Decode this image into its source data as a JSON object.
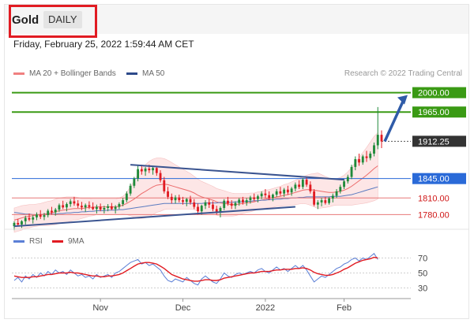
{
  "header": {
    "instrument": "Gold",
    "timeframe": "DAILY",
    "datetime": "Friday, February 25, 2022 1:59:44 AM CET"
  },
  "price_legend": {
    "bollinger": {
      "label": "MA 20 + Bollinger Bands",
      "color": "#f08080"
    },
    "ma50": {
      "label": "MA 50",
      "color": "#2d4a8a"
    }
  },
  "copyright": "Research © 2022 Trading Central",
  "rsi_legend": {
    "rsi": {
      "label": "RSI",
      "color": "#5b7fd6"
    },
    "ma9": {
      "label": "9MA",
      "color": "#e11b22"
    }
  },
  "colors": {
    "up": "#1f8a3a",
    "down": "#e11b22",
    "resistance": "#3a9a14",
    "support": "#e87878",
    "pivot": "#2a6ad8",
    "current": "#333333",
    "trendline": "#3a5490",
    "band_fill": "#fde2e2"
  },
  "chart_data": [
    {
      "type": "candlestick",
      "title": "Gold",
      "timeframe": "DAILY",
      "x_labels": [
        "Nov",
        "Dec",
        "2022",
        "Feb"
      ],
      "ylim": [
        1755,
        2025
      ],
      "levels": [
        {
          "value": 2000.0,
          "label": "2000.00",
          "kind": "resistance"
        },
        {
          "value": 1965.0,
          "label": "1965.00",
          "kind": "resistance"
        },
        {
          "value": 1912.25,
          "label": "1912.25",
          "kind": "current"
        },
        {
          "value": 1845.0,
          "label": "1845.00",
          "kind": "pivot"
        },
        {
          "value": 1810.0,
          "label": "1810.00",
          "kind": "support"
        },
        {
          "value": 1780.0,
          "label": "1780.00",
          "kind": "support"
        }
      ],
      "candles": [
        [
          1759,
          1768,
          1752,
          1765
        ],
        [
          1765,
          1772,
          1760,
          1762
        ],
        [
          1762,
          1770,
          1756,
          1768
        ],
        [
          1768,
          1778,
          1762,
          1774
        ],
        [
          1774,
          1782,
          1768,
          1771
        ],
        [
          1771,
          1779,
          1764,
          1775
        ],
        [
          1775,
          1784,
          1770,
          1780
        ],
        [
          1780,
          1788,
          1772,
          1776
        ],
        [
          1776,
          1783,
          1770,
          1779
        ],
        [
          1779,
          1790,
          1775,
          1787
        ],
        [
          1787,
          1794,
          1780,
          1784
        ],
        [
          1784,
          1792,
          1778,
          1789
        ],
        [
          1789,
          1800,
          1785,
          1797
        ],
        [
          1797,
          1805,
          1790,
          1793
        ],
        [
          1793,
          1802,
          1786,
          1799
        ],
        [
          1799,
          1808,
          1794,
          1804
        ],
        [
          1804,
          1812,
          1796,
          1800
        ],
        [
          1800,
          1806,
          1792,
          1796
        ],
        [
          1796,
          1803,
          1788,
          1793
        ],
        [
          1793,
          1800,
          1785,
          1797
        ],
        [
          1797,
          1804,
          1790,
          1794
        ],
        [
          1794,
          1802,
          1788,
          1790
        ],
        [
          1790,
          1798,
          1782,
          1794
        ],
        [
          1794,
          1800,
          1786,
          1789
        ],
        [
          1789,
          1796,
          1782,
          1792
        ],
        [
          1792,
          1799,
          1786,
          1795
        ],
        [
          1795,
          1801,
          1788,
          1790
        ],
        [
          1790,
          1797,
          1782,
          1794
        ],
        [
          1794,
          1802,
          1790,
          1799
        ],
        [
          1799,
          1810,
          1795,
          1806
        ],
        [
          1806,
          1822,
          1802,
          1818
        ],
        [
          1818,
          1836,
          1814,
          1832
        ],
        [
          1832,
          1848,
          1828,
          1845
        ],
        [
          1845,
          1868,
          1840,
          1862
        ],
        [
          1862,
          1870,
          1852,
          1858
        ],
        [
          1858,
          1866,
          1850,
          1863
        ],
        [
          1863,
          1870,
          1855,
          1860
        ],
        [
          1860,
          1868,
          1852,
          1864
        ],
        [
          1864,
          1868,
          1850,
          1855
        ],
        [
          1855,
          1860,
          1838,
          1842
        ],
        [
          1842,
          1848,
          1818,
          1822
        ],
        [
          1822,
          1830,
          1808,
          1812
        ],
        [
          1812,
          1818,
          1800,
          1806
        ],
        [
          1806,
          1815,
          1800,
          1811
        ],
        [
          1811,
          1816,
          1802,
          1806
        ],
        [
          1806,
          1812,
          1798,
          1803
        ],
        [
          1803,
          1810,
          1795,
          1808
        ],
        [
          1808,
          1814,
          1798,
          1802
        ],
        [
          1802,
          1808,
          1790,
          1794
        ],
        [
          1794,
          1800,
          1780,
          1786
        ],
        [
          1786,
          1798,
          1780,
          1796
        ],
        [
          1796,
          1806,
          1790,
          1802
        ],
        [
          1802,
          1808,
          1792,
          1798
        ],
        [
          1798,
          1804,
          1786,
          1790
        ],
        [
          1790,
          1796,
          1780,
          1784
        ],
        [
          1784,
          1795,
          1775,
          1792
        ],
        [
          1792,
          1808,
          1788,
          1805
        ],
        [
          1805,
          1812,
          1796,
          1800
        ],
        [
          1800,
          1806,
          1790,
          1796
        ],
        [
          1796,
          1804,
          1790,
          1801
        ],
        [
          1801,
          1810,
          1796,
          1807
        ],
        [
          1807,
          1812,
          1798,
          1802
        ],
        [
          1802,
          1810,
          1796,
          1806
        ],
        [
          1806,
          1814,
          1800,
          1811
        ],
        [
          1811,
          1818,
          1804,
          1808
        ],
        [
          1808,
          1816,
          1802,
          1813
        ],
        [
          1813,
          1822,
          1808,
          1818
        ],
        [
          1818,
          1826,
          1810,
          1815
        ],
        [
          1815,
          1822,
          1806,
          1810
        ],
        [
          1810,
          1818,
          1804,
          1816
        ],
        [
          1816,
          1826,
          1812,
          1822
        ],
        [
          1822,
          1830,
          1814,
          1818
        ],
        [
          1818,
          1828,
          1812,
          1825
        ],
        [
          1825,
          1832,
          1816,
          1820
        ],
        [
          1820,
          1830,
          1814,
          1827
        ],
        [
          1827,
          1838,
          1822,
          1834
        ],
        [
          1834,
          1842,
          1826,
          1830
        ],
        [
          1830,
          1846,
          1826,
          1843
        ],
        [
          1843,
          1848,
          1830,
          1834
        ],
        [
          1834,
          1840,
          1818,
          1822
        ],
        [
          1822,
          1826,
          1795,
          1798
        ],
        [
          1798,
          1806,
          1790,
          1802
        ],
        [
          1802,
          1810,
          1795,
          1806
        ],
        [
          1806,
          1812,
          1798,
          1801
        ],
        [
          1801,
          1812,
          1798,
          1809
        ],
        [
          1809,
          1818,
          1802,
          1814
        ],
        [
          1814,
          1826,
          1810,
          1822
        ],
        [
          1822,
          1834,
          1818,
          1830
        ],
        [
          1830,
          1844,
          1826,
          1840
        ],
        [
          1840,
          1852,
          1836,
          1848
        ],
        [
          1848,
          1870,
          1844,
          1866
        ],
        [
          1866,
          1885,
          1860,
          1880
        ],
        [
          1880,
          1890,
          1868,
          1874
        ],
        [
          1874,
          1888,
          1870,
          1885
        ],
        [
          1885,
          1895,
          1875,
          1882
        ],
        [
          1882,
          1894,
          1878,
          1890
        ],
        [
          1890,
          1910,
          1885,
          1905
        ],
        [
          1905,
          1974,
          1898,
          1924
        ],
        [
          1924,
          1932,
          1900,
          1912
        ]
      ],
      "ma20": [
        1770,
        1772,
        1774,
        1776,
        1777,
        1778,
        1779,
        1780,
        1781,
        1782,
        1783,
        1785,
        1787,
        1788,
        1789,
        1790,
        1791,
        1791,
        1791,
        1792,
        1793,
        1793,
        1794,
        1794,
        1794,
        1794,
        1794,
        1794,
        1795,
        1797,
        1800,
        1804,
        1808,
        1813,
        1818,
        1822,
        1826,
        1830,
        1833,
        1834,
        1835,
        1834,
        1832,
        1830,
        1828,
        1826,
        1824,
        1822,
        1819,
        1815,
        1812,
        1810,
        1808,
        1806,
        1803,
        1801,
        1800,
        1799,
        1798,
        1798,
        1799,
        1800,
        1801,
        1802,
        1803,
        1805,
        1806,
        1808,
        1809,
        1810,
        1812,
        1813,
        1815,
        1816,
        1818,
        1820,
        1822,
        1824,
        1825,
        1825,
        1824,
        1823,
        1822,
        1821,
        1820,
        1820,
        1821,
        1822,
        1824,
        1827,
        1831,
        1836,
        1841,
        1846,
        1851,
        1857,
        1863,
        1868
      ],
      "ma50": [
        1784,
        1783,
        1782,
        1781,
        1781,
        1780,
        1780,
        1780,
        1780,
        1780,
        1781,
        1781,
        1782,
        1782,
        1783,
        1783,
        1784,
        1784,
        1785,
        1785,
        1786,
        1786,
        1787,
        1787,
        1787,
        1788,
        1788,
        1788,
        1789,
        1789,
        1790,
        1791,
        1792,
        1793,
        1794,
        1795,
        1796,
        1797,
        1798,
        1799,
        1800,
        1800,
        1800,
        1800,
        1800,
        1800,
        1800,
        1800,
        1800,
        1800,
        1800,
        1801,
        1801,
        1801,
        1801,
        1802,
        1802,
        1802,
        1802,
        1803,
        1803,
        1803,
        1804,
        1804,
        1805,
        1805,
        1806,
        1806,
        1807,
        1807,
        1808,
        1808,
        1809,
        1809,
        1810,
        1810,
        1811,
        1811,
        1812,
        1812,
        1812,
        1812,
        1812,
        1812,
        1812,
        1813,
        1813,
        1813,
        1814,
        1815,
        1816,
        1818,
        1820,
        1822,
        1824,
        1826,
        1828,
        1830
      ],
      "bb_width": [
        22,
        22,
        22,
        21,
        21,
        20,
        20,
        20,
        21,
        22,
        22,
        23,
        23,
        23,
        23,
        22,
        21,
        20,
        18,
        17,
        16,
        15,
        14,
        14,
        14,
        14,
        14,
        14,
        15,
        16,
        20,
        26,
        33,
        40,
        45,
        48,
        50,
        50,
        49,
        48,
        46,
        44,
        42,
        40,
        38,
        36,
        34,
        32,
        30,
        29,
        28,
        27,
        26,
        25,
        24,
        24,
        23,
        22,
        21,
        20,
        19,
        18,
        17,
        17,
        16,
        16,
        16,
        16,
        16,
        17,
        17,
        18,
        19,
        20,
        21,
        22,
        23,
        24,
        26,
        28,
        30,
        32,
        30,
        28,
        26,
        24,
        24,
        25,
        27,
        30,
        34,
        38,
        42,
        46,
        50,
        54,
        58,
        60
      ]
    },
    {
      "type": "line",
      "title": "RSI",
      "series": [
        {
          "name": "RSI",
          "values": [
            40,
            44,
            38,
            46,
            42,
            48,
            44,
            50,
            46,
            52,
            48,
            54,
            50,
            52,
            48,
            54,
            50,
            46,
            48,
            44,
            46,
            42,
            48,
            44,
            46,
            48,
            44,
            50,
            52,
            56,
            60,
            64,
            66,
            68,
            62,
            64,
            60,
            62,
            58,
            54,
            46,
            40,
            38,
            42,
            40,
            38,
            44,
            40,
            36,
            34,
            42,
            46,
            42,
            38,
            36,
            42,
            50,
            46,
            44,
            48,
            50,
            48,
            50,
            52,
            50,
            54,
            56,
            52,
            50,
            54,
            58,
            54,
            56,
            52,
            56,
            60,
            56,
            60,
            54,
            46,
            38,
            42,
            46,
            44,
            48,
            52,
            56,
            58,
            62,
            64,
            68,
            70,
            66,
            70,
            68,
            72,
            76,
            68
          ]
        },
        {
          "name": "9MA",
          "values": [
            46,
            45,
            44,
            44,
            44,
            45,
            45,
            46,
            47,
            48,
            48,
            49,
            50,
            50,
            50,
            51,
            50,
            50,
            49,
            48,
            47,
            46,
            46,
            45,
            45,
            46,
            46,
            47,
            48,
            50,
            53,
            56,
            59,
            62,
            63,
            64,
            64,
            63,
            62,
            59,
            56,
            52,
            48,
            46,
            44,
            42,
            41,
            40,
            39,
            39,
            40,
            41,
            41,
            40,
            40,
            41,
            43,
            44,
            45,
            46,
            47,
            48,
            49,
            50,
            50,
            51,
            52,
            52,
            52,
            53,
            54,
            54,
            55,
            55,
            55,
            56,
            56,
            57,
            56,
            54,
            51,
            49,
            48,
            47,
            47,
            48,
            50,
            52,
            55,
            57,
            60,
            63,
            65,
            67,
            68,
            69,
            71,
            70
          ]
        }
      ],
      "levels": [
        70,
        50,
        30
      ],
      "ylim": [
        20,
        80
      ]
    }
  ]
}
